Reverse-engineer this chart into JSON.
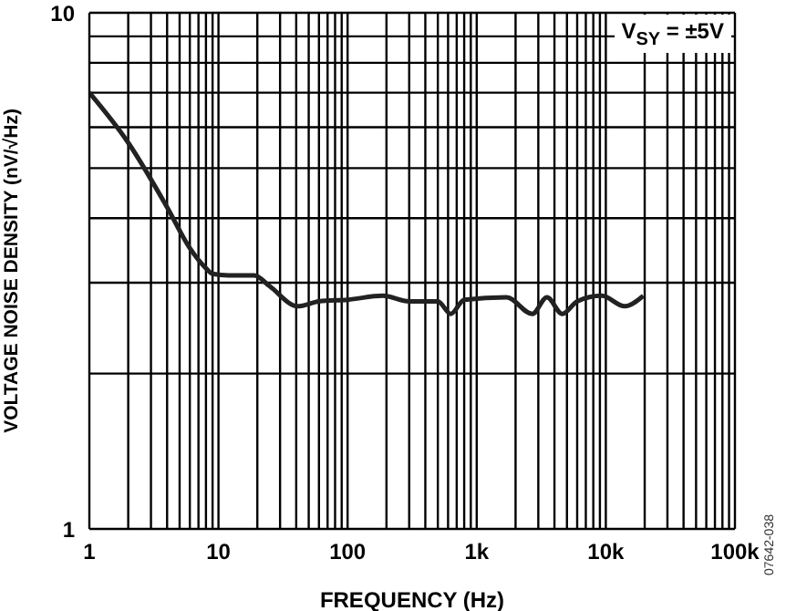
{
  "chart_data": {
    "type": "line",
    "xlabel": "FREQUENCY (Hz)",
    "ylabel": "VOLTAGE NOISE DENSITY (nV/√Hz)",
    "annotations": [
      "V$_{SY}$ = ±5V",
      "07642-038"
    ],
    "log": "xy",
    "grid": true,
    "marker": "none",
    "line_style": "solid",
    "xlim": [
      1,
      100000
    ],
    "xticks": [
      1,
      {
        "value": 2,
        "label": null
      },
      {
        "value": 3,
        "label": null
      },
      {
        "value": 4,
        "label": null
      },
      {
        "value": 5,
        "label": null
      },
      {
        "value": 6,
        "label": null
      },
      {
        "value": 7,
        "label": null
      },
      {
        "value": 8,
        "label": null
      },
      {
        "value": 9,
        "label": null
      },
      10,
      {
        "value": 20,
        "label": null
      },
      {
        "value": 30,
        "label": null
      },
      {
        "value": 40,
        "label": null
      },
      {
        "value": 50,
        "label": null
      },
      {
        "value": 60,
        "label": null
      },
      {
        "value": 70,
        "label": null
      },
      {
        "value": 80,
        "label": null
      },
      {
        "value": 90,
        "label": null
      },
      100,
      {
        "value": 200,
        "label": null
      },
      {
        "value": 300,
        "label": null
      },
      {
        "value": 400,
        "label": null
      },
      {
        "value": 500,
        "label": null
      },
      {
        "value": 600,
        "label": null
      },
      {
        "value": 700,
        "label": null
      },
      {
        "value": 800,
        "label": null
      },
      {
        "value": 900,
        "label": null
      },
      {
        "value": 1000,
        "label": "1k"
      },
      {
        "value": 2000,
        "label": null
      },
      {
        "value": 3000,
        "label": null
      },
      {
        "value": 4000,
        "label": null
      },
      {
        "value": 5000,
        "label": null
      },
      {
        "value": 6000,
        "label": null
      },
      {
        "value": 7000,
        "label": null
      },
      {
        "value": 8000,
        "label": null
      },
      {
        "value": 9000,
        "label": null
      },
      {
        "value": 10000,
        "label": "10k"
      },
      {
        "value": 20000,
        "label": null
      },
      {
        "value": 30000,
        "label": null
      },
      {
        "value": 40000,
        "label": null
      },
      {
        "value": 50000,
        "label": null
      },
      {
        "value": 60000,
        "label": null
      },
      {
        "value": 70000,
        "label": null
      },
      {
        "value": 80000,
        "label": null
      },
      {
        "value": 90000,
        "label": null
      },
      {
        "value": 100000,
        "label": "100k"
      }
    ],
    "ylim": [
      1,
      10
    ],
    "yticks": [
      1,
      {
        "value": 2,
        "label": null
      },
      {
        "value": 3,
        "label": null
      },
      {
        "value": 4,
        "label": null
      },
      {
        "value": 5,
        "label": null
      },
      {
        "value": 6,
        "label": null
      },
      {
        "value": 7,
        "label": null
      },
      {
        "value": 8,
        "label": null
      },
      {
        "value": 9,
        "label": null
      },
      10
    ],
    "series": [
      {
        "color": "#222222",
        "x": [
          1,
          2,
          4,
          6,
          8,
          9,
          12,
          19,
          25,
          41,
          60,
          100,
          187,
          300,
          500,
          630,
          800,
          1700,
          2700,
          3500,
          4600,
          6000,
          9300,
          14000,
          19500
        ],
        "values": [
          7,
          5.6,
          4.2,
          3.5,
          3.2,
          3.12,
          3.1,
          3.1,
          2.95,
          2.7,
          2.76,
          2.78,
          2.83,
          2.76,
          2.76,
          2.61,
          2.78,
          2.81,
          2.61,
          2.81,
          2.61,
          2.76,
          2.83,
          2.7,
          2.83
        ]
      }
    ]
  }
}
